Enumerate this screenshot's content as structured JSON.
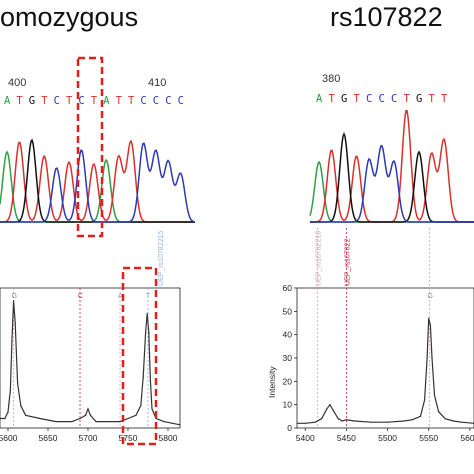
{
  "panel_left": {
    "title": "omozygous",
    "seq_positions": [
      "400",
      "410"
    ],
    "seq_bases": [
      "A",
      "T",
      "G",
      "T",
      "C",
      "T",
      "C",
      "T",
      "A",
      "T",
      "T",
      "C",
      "C",
      "C",
      "C"
    ]
  },
  "panel_right": {
    "title": "rs107822",
    "seq_positions": [
      "380"
    ],
    "seq_bases": [
      "A",
      "T",
      "G",
      "T",
      "C",
      "C",
      "C",
      "T",
      "G",
      "T",
      "T"
    ]
  },
  "colors": {
    "A": "#2f9e44",
    "T": "#d9302c",
    "G": "#111111",
    "C": "#2b3ab5",
    "highlight_box": "#e0201b",
    "ms_line": "#333333",
    "grid_pink": "#d9a0a8",
    "grid_red": "#c2263a",
    "grid_blue": "#7aa7d8"
  },
  "chart_data": [
    {
      "type": "line",
      "title": "",
      "xlabel": "",
      "ylabel": "",
      "x_ticks": [
        "5600",
        "5650",
        "5700",
        "5750",
        "5800"
      ],
      "xlim": [
        5590,
        5815
      ],
      "peak_labels": [
        "G",
        "C",
        "A",
        "T"
      ],
      "marker_labels": [
        "UEP_rs10782215"
      ],
      "series": [
        {
          "x": [
            5590,
            5596,
            5600,
            5603,
            5605,
            5607,
            5609,
            5612,
            5616,
            5622,
            5640,
            5660,
            5680,
            5690,
            5697,
            5700,
            5703,
            5710,
            5720,
            5740,
            5750,
            5760,
            5766,
            5769,
            5772,
            5774,
            5776,
            5778,
            5780,
            5785,
            5795,
            5805,
            5815
          ],
          "y": [
            3,
            3,
            5,
            12,
            28,
            40,
            33,
            14,
            7,
            4,
            3,
            2,
            2,
            3,
            4,
            6,
            4,
            2,
            2,
            2,
            3,
            4,
            7,
            16,
            30,
            36,
            30,
            15,
            6,
            3,
            2,
            1.5,
            1
          ]
        }
      ]
    },
    {
      "type": "line",
      "title": "",
      "xlabel": "",
      "ylabel": "Intensity",
      "x_ticks": [
        "5400",
        "5450",
        "5500",
        "5550",
        "5600"
      ],
      "y_ticks": [
        "0",
        "10",
        "20",
        "30",
        "40",
        "50",
        "60"
      ],
      "xlim": [
        5390,
        5605
      ],
      "ylim": [
        0,
        60
      ],
      "peak_labels": [
        "G"
      ],
      "marker_labels": [
        "UEP_rs10782210",
        "UEP_rs107822"
      ],
      "series": [
        {
          "x": [
            5390,
            5400,
            5412,
            5420,
            5426,
            5430,
            5435,
            5440,
            5445,
            5450,
            5460,
            5480,
            5500,
            5520,
            5530,
            5540,
            5545,
            5548,
            5550,
            5552,
            5554,
            5557,
            5562,
            5570,
            5580,
            5590,
            5605
          ],
          "y": [
            2,
            2,
            2.5,
            4,
            8,
            10,
            7,
            4,
            3,
            3.5,
            3,
            2.5,
            2.5,
            3,
            3.5,
            5,
            12,
            30,
            47,
            44,
            30,
            14,
            7,
            4,
            3,
            2.5,
            2
          ]
        }
      ]
    }
  ]
}
